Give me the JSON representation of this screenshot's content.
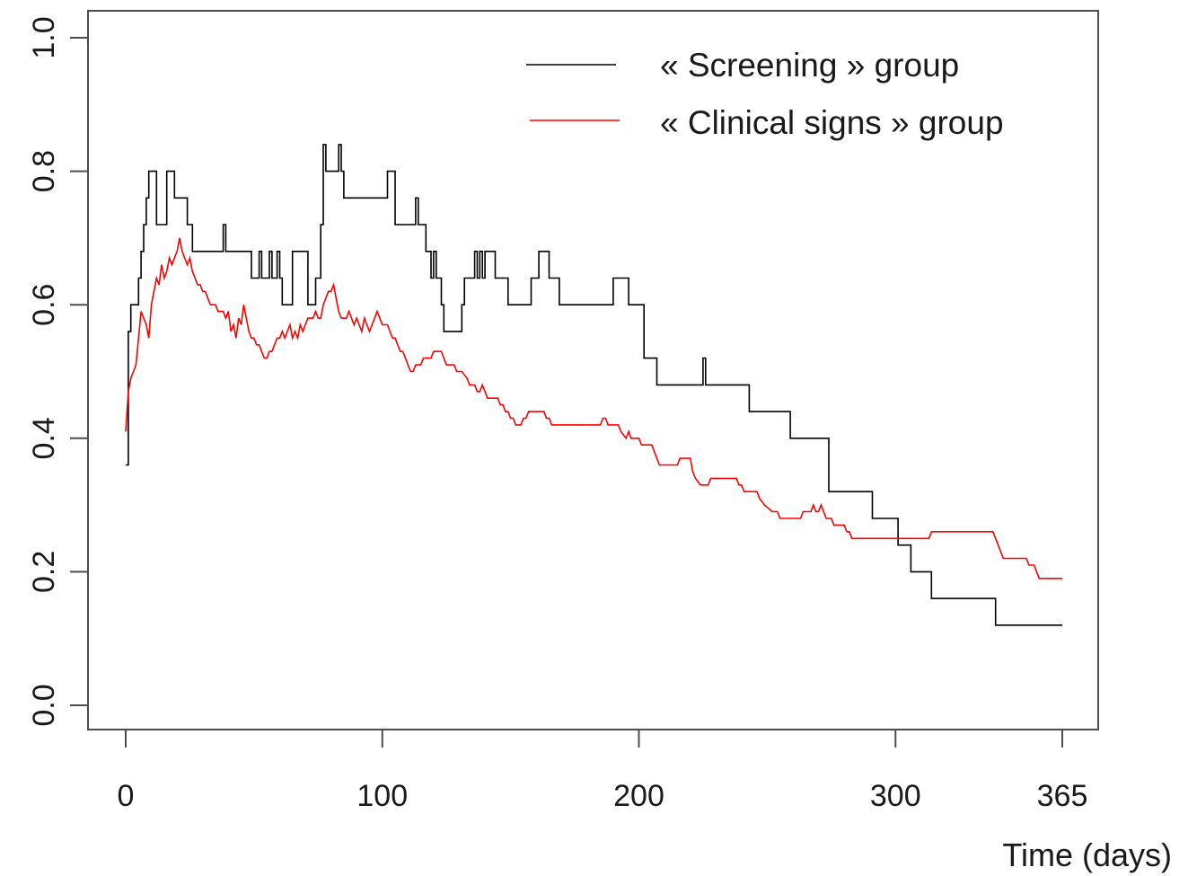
{
  "chart_data": {
    "type": "line",
    "title": "",
    "xlabel": "Time (days)",
    "ylabel": "",
    "xlim": [
      0,
      365
    ],
    "ylim": [
      0.0,
      1.0
    ],
    "x_ticks": [
      0,
      100,
      200,
      300,
      365
    ],
    "x_tick_labels": [
      "0",
      "100",
      "200",
      "300",
      "365"
    ],
    "y_ticks": [
      0.0,
      0.2,
      0.4,
      0.6,
      0.8,
      1.0
    ],
    "y_tick_labels": [
      "0.0",
      "0.2",
      "0.4",
      "0.6",
      "0.8",
      "1.0"
    ],
    "grid": false,
    "legend_position": "top-right",
    "series": [
      {
        "name": "« Screening » group",
        "color": "#000000",
        "step": true,
        "points": [
          [
            0,
            0.36
          ],
          [
            1,
            0.56
          ],
          [
            2,
            0.6
          ],
          [
            4,
            0.6
          ],
          [
            5,
            0.64
          ],
          [
            6,
            0.68
          ],
          [
            7,
            0.72
          ],
          [
            8,
            0.76
          ],
          [
            9,
            0.8
          ],
          [
            11,
            0.8
          ],
          [
            12,
            0.72
          ],
          [
            15,
            0.72
          ],
          [
            16,
            0.8
          ],
          [
            18,
            0.8
          ],
          [
            19,
            0.76
          ],
          [
            23,
            0.76
          ],
          [
            24,
            0.72
          ],
          [
            26,
            0.68
          ],
          [
            37,
            0.68
          ],
          [
            38,
            0.72
          ],
          [
            39,
            0.68
          ],
          [
            48,
            0.68
          ],
          [
            49,
            0.64
          ],
          [
            51,
            0.64
          ],
          [
            52,
            0.68
          ],
          [
            53,
            0.64
          ],
          [
            55,
            0.64
          ],
          [
            56,
            0.68
          ],
          [
            57,
            0.64
          ],
          [
            58,
            0.64
          ],
          [
            59,
            0.68
          ],
          [
            60,
            0.64
          ],
          [
            61,
            0.6
          ],
          [
            64,
            0.6
          ],
          [
            65,
            0.68
          ],
          [
            70,
            0.68
          ],
          [
            71,
            0.6
          ],
          [
            73,
            0.6
          ],
          [
            74,
            0.64
          ],
          [
            75,
            0.64
          ],
          [
            76,
            0.72
          ],
          [
            77,
            0.84
          ],
          [
            78,
            0.8
          ],
          [
            82,
            0.8
          ],
          [
            83,
            0.84
          ],
          [
            84,
            0.8
          ],
          [
            85,
            0.76
          ],
          [
            101,
            0.76
          ],
          [
            102,
            0.8
          ],
          [
            104,
            0.8
          ],
          [
            105,
            0.72
          ],
          [
            112,
            0.72
          ],
          [
            113,
            0.76
          ],
          [
            114,
            0.72
          ],
          [
            117,
            0.68
          ],
          [
            119,
            0.64
          ],
          [
            120,
            0.68
          ],
          [
            121,
            0.64
          ],
          [
            122,
            0.64
          ],
          [
            123,
            0.6
          ],
          [
            124,
            0.56
          ],
          [
            130,
            0.56
          ],
          [
            131,
            0.6
          ],
          [
            132,
            0.64
          ],
          [
            135,
            0.64
          ],
          [
            136,
            0.68
          ],
          [
            137,
            0.64
          ],
          [
            138,
            0.68
          ],
          [
            139,
            0.64
          ],
          [
            140,
            0.68
          ],
          [
            143,
            0.68
          ],
          [
            144,
            0.64
          ],
          [
            148,
            0.64
          ],
          [
            149,
            0.6
          ],
          [
            157,
            0.6
          ],
          [
            158,
            0.64
          ],
          [
            160,
            0.64
          ],
          [
            161,
            0.68
          ],
          [
            164,
            0.68
          ],
          [
            165,
            0.64
          ],
          [
            168,
            0.64
          ],
          [
            169,
            0.6
          ],
          [
            189,
            0.6
          ],
          [
            190,
            0.64
          ],
          [
            195,
            0.64
          ],
          [
            196,
            0.6
          ],
          [
            201,
            0.6
          ],
          [
            202,
            0.52
          ],
          [
            206,
            0.52
          ],
          [
            207,
            0.48
          ],
          [
            224,
            0.48
          ],
          [
            225,
            0.52
          ],
          [
            226,
            0.48
          ],
          [
            242,
            0.48
          ],
          [
            243,
            0.44
          ],
          [
            258,
            0.44
          ],
          [
            259,
            0.4
          ],
          [
            273,
            0.4
          ],
          [
            274,
            0.32
          ],
          [
            290,
            0.32
          ],
          [
            291,
            0.28
          ],
          [
            300,
            0.28
          ],
          [
            301,
            0.24
          ],
          [
            305,
            0.24
          ],
          [
            306,
            0.2
          ],
          [
            313,
            0.2
          ],
          [
            314,
            0.16
          ],
          [
            338,
            0.16
          ],
          [
            339,
            0.12
          ],
          [
            365,
            0.12
          ]
        ]
      },
      {
        "name": "« Clinical signs » group",
        "color": "#ff0000",
        "step": false,
        "points": [
          [
            0,
            0.41
          ],
          [
            1,
            0.47
          ],
          [
            2,
            0.49
          ],
          [
            3,
            0.5
          ],
          [
            4,
            0.51
          ],
          [
            5,
            0.55
          ],
          [
            6,
            0.59
          ],
          [
            7,
            0.58
          ],
          [
            8,
            0.57
          ],
          [
            9,
            0.55
          ],
          [
            10,
            0.6
          ],
          [
            11,
            0.62
          ],
          [
            12,
            0.64
          ],
          [
            13,
            0.63
          ],
          [
            14,
            0.66
          ],
          [
            15,
            0.64
          ],
          [
            16,
            0.65
          ],
          [
            17,
            0.67
          ],
          [
            18,
            0.66
          ],
          [
            19,
            0.67
          ],
          [
            20,
            0.68
          ],
          [
            21,
            0.7
          ],
          [
            22,
            0.68
          ],
          [
            23,
            0.67
          ],
          [
            24,
            0.66
          ],
          [
            25,
            0.67
          ],
          [
            26,
            0.65
          ],
          [
            27,
            0.64
          ],
          [
            28,
            0.63
          ],
          [
            29,
            0.63
          ],
          [
            30,
            0.62
          ],
          [
            31,
            0.62
          ],
          [
            32,
            0.61
          ],
          [
            33,
            0.6
          ],
          [
            34,
            0.6
          ],
          [
            35,
            0.6
          ],
          [
            36,
            0.59
          ],
          [
            37,
            0.59
          ],
          [
            38,
            0.59
          ],
          [
            39,
            0.58
          ],
          [
            40,
            0.59
          ],
          [
            41,
            0.56
          ],
          [
            42,
            0.57
          ],
          [
            43,
            0.55
          ],
          [
            44,
            0.58
          ],
          [
            45,
            0.57
          ],
          [
            46,
            0.6
          ],
          [
            47,
            0.58
          ],
          [
            48,
            0.56
          ],
          [
            49,
            0.55
          ],
          [
            50,
            0.55
          ],
          [
            51,
            0.54
          ],
          [
            52,
            0.54
          ],
          [
            53,
            0.53
          ],
          [
            54,
            0.52
          ],
          [
            55,
            0.52
          ],
          [
            56,
            0.53
          ],
          [
            57,
            0.53
          ],
          [
            58,
            0.54
          ],
          [
            59,
            0.55
          ],
          [
            60,
            0.55
          ],
          [
            61,
            0.56
          ],
          [
            62,
            0.55
          ],
          [
            63,
            0.56
          ],
          [
            64,
            0.57
          ],
          [
            65,
            0.55
          ],
          [
            66,
            0.56
          ],
          [
            67,
            0.55
          ],
          [
            68,
            0.57
          ],
          [
            69,
            0.56
          ],
          [
            70,
            0.57
          ],
          [
            71,
            0.58
          ],
          [
            72,
            0.58
          ],
          [
            73,
            0.58
          ],
          [
            74,
            0.59
          ],
          [
            75,
            0.58
          ],
          [
            76,
            0.58
          ],
          [
            77,
            0.6
          ],
          [
            78,
            0.61
          ],
          [
            79,
            0.62
          ],
          [
            80,
            0.62
          ],
          [
            81,
            0.63
          ],
          [
            82,
            0.61
          ],
          [
            83,
            0.59
          ],
          [
            84,
            0.58
          ],
          [
            85,
            0.58
          ],
          [
            86,
            0.58
          ],
          [
            87,
            0.59
          ],
          [
            88,
            0.58
          ],
          [
            89,
            0.57
          ],
          [
            90,
            0.58
          ],
          [
            91,
            0.57
          ],
          [
            92,
            0.56
          ],
          [
            93,
            0.58
          ],
          [
            94,
            0.57
          ],
          [
            95,
            0.56
          ],
          [
            96,
            0.57
          ],
          [
            97,
            0.58
          ],
          [
            98,
            0.59
          ],
          [
            99,
            0.58
          ],
          [
            100,
            0.57
          ],
          [
            101,
            0.57
          ],
          [
            102,
            0.57
          ],
          [
            103,
            0.56
          ],
          [
            104,
            0.55
          ],
          [
            105,
            0.55
          ],
          [
            106,
            0.54
          ],
          [
            107,
            0.53
          ],
          [
            108,
            0.53
          ],
          [
            109,
            0.52
          ],
          [
            110,
            0.51
          ],
          [
            111,
            0.5
          ],
          [
            112,
            0.5
          ],
          [
            113,
            0.51
          ],
          [
            114,
            0.51
          ],
          [
            115,
            0.51
          ],
          [
            116,
            0.52
          ],
          [
            117,
            0.52
          ],
          [
            118,
            0.52
          ],
          [
            119,
            0.52
          ],
          [
            120,
            0.53
          ],
          [
            121,
            0.53
          ],
          [
            123,
            0.53
          ],
          [
            124,
            0.52
          ],
          [
            125,
            0.51
          ],
          [
            126,
            0.51
          ],
          [
            128,
            0.51
          ],
          [
            129,
            0.5
          ],
          [
            130,
            0.5
          ],
          [
            131,
            0.5
          ],
          [
            133,
            0.49
          ],
          [
            134,
            0.48
          ],
          [
            135,
            0.48
          ],
          [
            136,
            0.48
          ],
          [
            137,
            0.47
          ],
          [
            138,
            0.47
          ],
          [
            139,
            0.48
          ],
          [
            140,
            0.47
          ],
          [
            141,
            0.46
          ],
          [
            142,
            0.46
          ],
          [
            145,
            0.46
          ],
          [
            146,
            0.45
          ],
          [
            147,
            0.45
          ],
          [
            148,
            0.44
          ],
          [
            149,
            0.44
          ],
          [
            150,
            0.43
          ],
          [
            151,
            0.43
          ],
          [
            152,
            0.42
          ],
          [
            154,
            0.42
          ],
          [
            155,
            0.43
          ],
          [
            156,
            0.43
          ],
          [
            157,
            0.44
          ],
          [
            163,
            0.44
          ],
          [
            164,
            0.43
          ],
          [
            165,
            0.43
          ],
          [
            166,
            0.42
          ],
          [
            185,
            0.42
          ],
          [
            186,
            0.43
          ],
          [
            187,
            0.43
          ],
          [
            188,
            0.42
          ],
          [
            192,
            0.42
          ],
          [
            193,
            0.41
          ],
          [
            195,
            0.4
          ],
          [
            196,
            0.41
          ],
          [
            197,
            0.4
          ],
          [
            200,
            0.4
          ],
          [
            201,
            0.39
          ],
          [
            205,
            0.39
          ],
          [
            206,
            0.38
          ],
          [
            207,
            0.37
          ],
          [
            208,
            0.36
          ],
          [
            215,
            0.36
          ],
          [
            216,
            0.37
          ],
          [
            220,
            0.37
          ],
          [
            221,
            0.35
          ],
          [
            222,
            0.34
          ],
          [
            224,
            0.33
          ],
          [
            227,
            0.33
          ],
          [
            228,
            0.34
          ],
          [
            238,
            0.34
          ],
          [
            239,
            0.33
          ],
          [
            240,
            0.33
          ],
          [
            241,
            0.32
          ],
          [
            246,
            0.32
          ],
          [
            247,
            0.31
          ],
          [
            249,
            0.3
          ],
          [
            252,
            0.29
          ],
          [
            254,
            0.29
          ],
          [
            255,
            0.28
          ],
          [
            263,
            0.28
          ],
          [
            264,
            0.29
          ],
          [
            267,
            0.29
          ],
          [
            268,
            0.3
          ],
          [
            269,
            0.29
          ],
          [
            270,
            0.29
          ],
          [
            271,
            0.3
          ],
          [
            272,
            0.29
          ],
          [
            273,
            0.28
          ],
          [
            275,
            0.28
          ],
          [
            276,
            0.27
          ],
          [
            280,
            0.27
          ],
          [
            281,
            0.26
          ],
          [
            282,
            0.26
          ],
          [
            283,
            0.25
          ],
          [
            313,
            0.25
          ],
          [
            314,
            0.26
          ],
          [
            338,
            0.26
          ],
          [
            339,
            0.25
          ],
          [
            340,
            0.24
          ],
          [
            342,
            0.22
          ],
          [
            351,
            0.22
          ],
          [
            352,
            0.21
          ],
          [
            354,
            0.21
          ],
          [
            355,
            0.2
          ],
          [
            356,
            0.19
          ],
          [
            362,
            0.19
          ],
          [
            365,
            0.19
          ]
        ]
      }
    ]
  }
}
